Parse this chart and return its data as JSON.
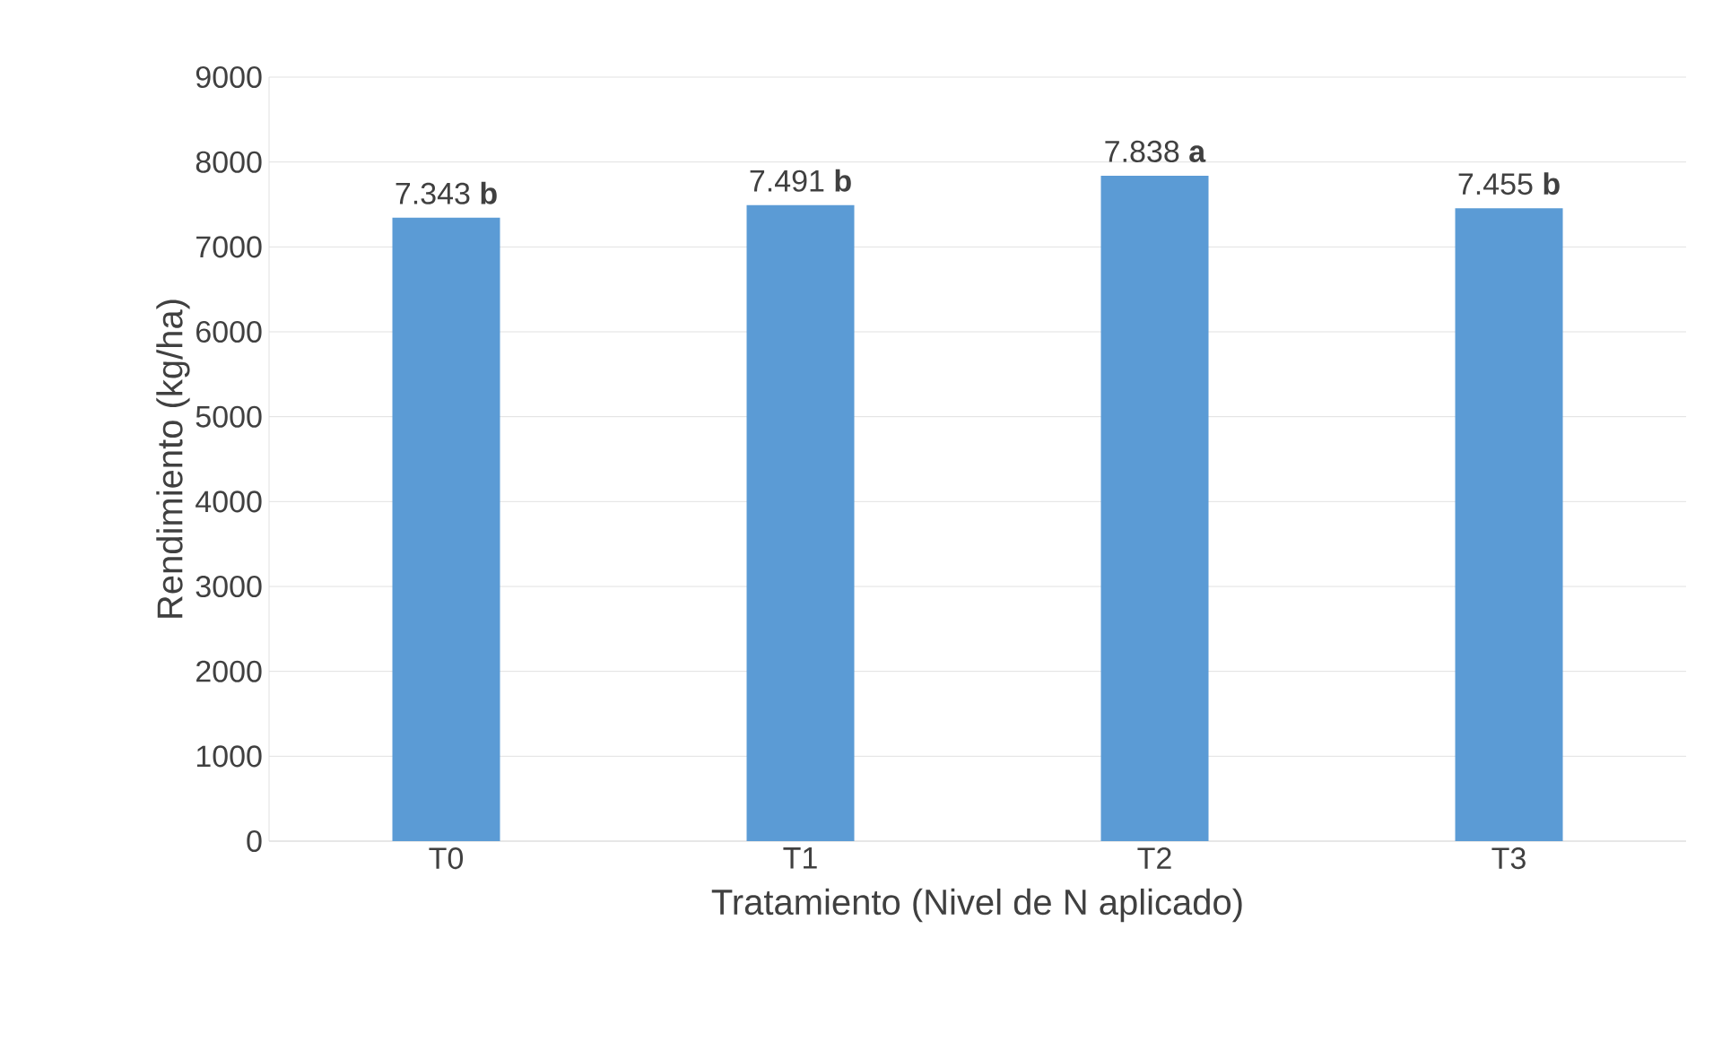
{
  "chart_data": {
    "type": "bar",
    "xlabel": "Tratamiento (Nivel de N aplicado)",
    "ylabel": "Rendimiento (kg/ha)",
    "categories": [
      "T0",
      "T1",
      "T2",
      "T3"
    ],
    "values": [
      7343,
      7491,
      7838,
      7455
    ],
    "value_labels": [
      "7.343 **b**",
      "7.491 **b**",
      "7.838 **a**",
      "7.455 **b**"
    ],
    "color": "#5b9bd5",
    "ylim": [
      0,
      9000
    ],
    "yticks": [
      0,
      1000,
      2000,
      3000,
      4000,
      5000,
      6000,
      7000,
      8000,
      9000
    ],
    "grid": "y"
  }
}
